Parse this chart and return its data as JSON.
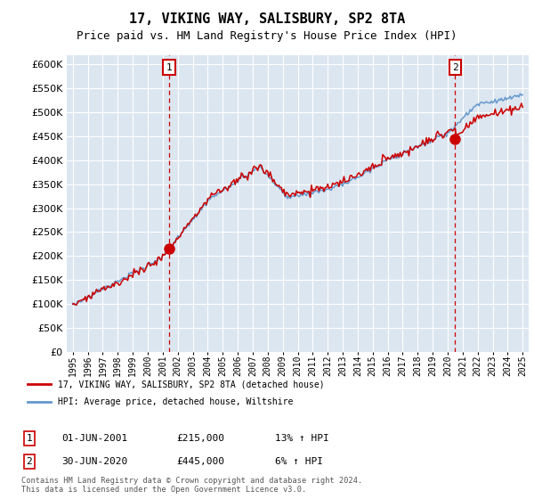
{
  "title": "17, VIKING WAY, SALISBURY, SP2 8TA",
  "subtitle": "Price paid vs. HM Land Registry's House Price Index (HPI)",
  "title_fontsize": 11,
  "subtitle_fontsize": 9,
  "background_color": "#dce6f1",
  "outer_bg_color": "#ffffff",
  "ylabel_vals": [
    0,
    50000,
    100000,
    150000,
    200000,
    250000,
    300000,
    350000,
    400000,
    450000,
    500000,
    550000,
    600000
  ],
  "ylim": [
    0,
    620000
  ],
  "xlim_left": 1994.6,
  "xlim_right": 2025.4,
  "sale1_date": 2001.42,
  "sale1_price": 215000,
  "sale2_date": 2020.5,
  "sale2_price": 445000,
  "legend_label_red": "17, VIKING WAY, SALISBURY, SP2 8TA (detached house)",
  "legend_label_blue": "HPI: Average price, detached house, Wiltshire",
  "annotation1_date": "01-JUN-2001",
  "annotation1_price": "£215,000",
  "annotation1_hpi": "13% ↑ HPI",
  "annotation2_date": "30-JUN-2020",
  "annotation2_price": "£445,000",
  "annotation2_hpi": "6% ↑ HPI",
  "footer": "Contains HM Land Registry data © Crown copyright and database right 2024.\nThis data is licensed under the Open Government Licence v3.0.",
  "red_color": "#cc0000",
  "blue_color": "#6699cc",
  "marker_color": "#cc0000",
  "box_edge_color": "#cc0000"
}
